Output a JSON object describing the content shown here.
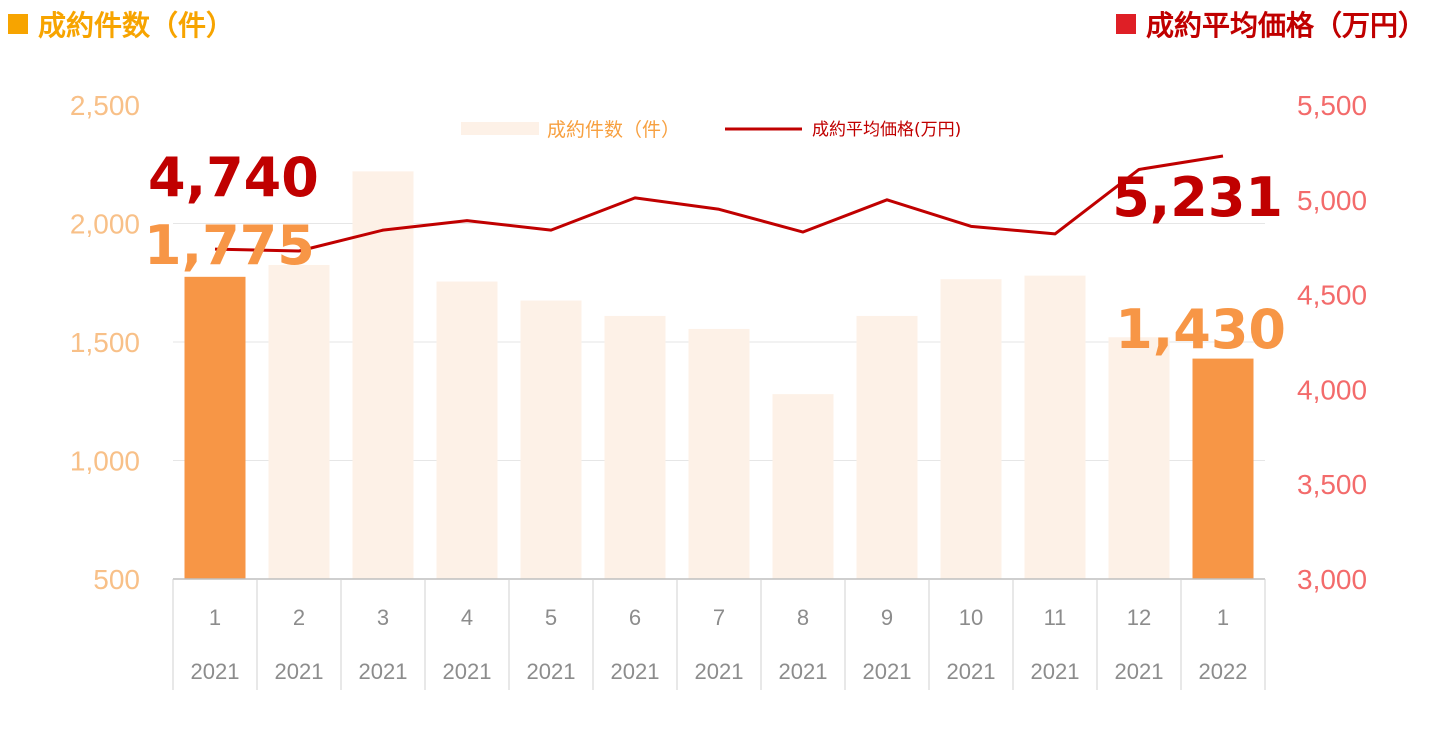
{
  "titles": {
    "left": "成約件数（件）",
    "right": "成約平均価格（万円）"
  },
  "colors": {
    "bar_highlight": "#F79646",
    "bar_muted": "#FDF1E7",
    "line": "#C00000",
    "left_axis": "#F8C088",
    "right_axis": "#F36B6B",
    "callout_count": "#F79646",
    "callout_price": "#C00000"
  },
  "chart_data": {
    "type": "bar",
    "categories": [
      {
        "month": "1",
        "year": "2021"
      },
      {
        "month": "2",
        "year": "2021"
      },
      {
        "month": "3",
        "year": "2021"
      },
      {
        "month": "4",
        "year": "2021"
      },
      {
        "month": "5",
        "year": "2021"
      },
      {
        "month": "6",
        "year": "2021"
      },
      {
        "month": "7",
        "year": "2021"
      },
      {
        "month": "8",
        "year": "2021"
      },
      {
        "month": "9",
        "year": "2021"
      },
      {
        "month": "10",
        "year": "2021"
      },
      {
        "month": "11",
        "year": "2021"
      },
      {
        "month": "12",
        "year": "2021"
      },
      {
        "month": "1",
        "year": "2022"
      }
    ],
    "series": [
      {
        "name": "成約件数（件）",
        "type": "bar",
        "axis": "left",
        "values": [
          1775,
          1825,
          2220,
          1755,
          1675,
          1610,
          1555,
          1280,
          1610,
          1765,
          1780,
          1520,
          1430
        ],
        "highlight": [
          true,
          false,
          false,
          false,
          false,
          false,
          false,
          false,
          false,
          false,
          false,
          false,
          true
        ]
      },
      {
        "name": "成約平均価格(万円)",
        "type": "line",
        "axis": "right",
        "values": [
          4740,
          4730,
          4840,
          4890,
          4840,
          5010,
          4950,
          4830,
          5000,
          4860,
          4820,
          5160,
          5231
        ]
      }
    ],
    "left_axis": {
      "min": 500,
      "max": 2500,
      "ticks": [
        "2,500",
        "2,000",
        "1,500",
        "1,000",
        "500"
      ]
    },
    "right_axis": {
      "min": 3000,
      "max": 5500,
      "ticks": [
        "5,500",
        "5,000",
        "4,500",
        "4,000",
        "3,500",
        "3,000"
      ]
    },
    "gridlines": true,
    "legend_position": "top-center",
    "callouts": {
      "count_first": "1,775",
      "count_last": "1,430",
      "price_first": "4,740",
      "price_last": "5,231"
    }
  }
}
